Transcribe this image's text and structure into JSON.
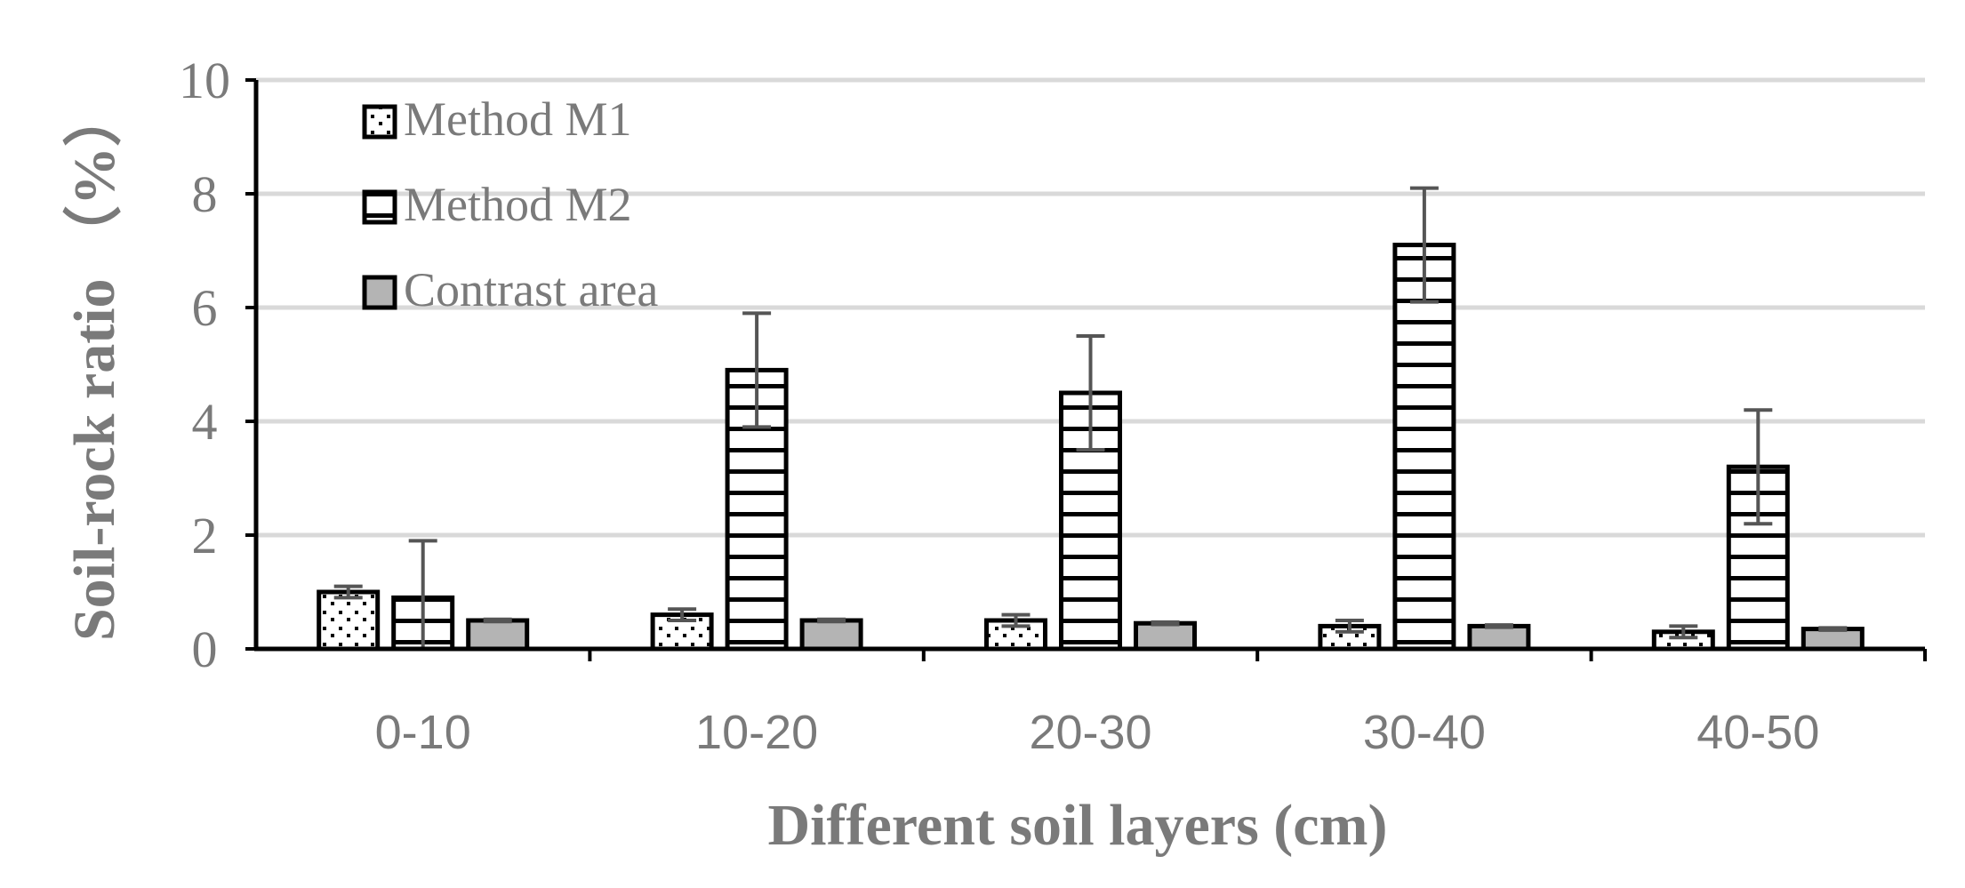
{
  "chart_data": {
    "type": "bar",
    "categories": [
      "0-10",
      "10-20",
      "20-30",
      "30-40",
      "40-50"
    ],
    "series": [
      {
        "name": "Method M1",
        "values": [
          1.0,
          0.6,
          0.5,
          0.4,
          0.3
        ],
        "errors": [
          0.1,
          0.1,
          0.1,
          0.1,
          0.1
        ],
        "pattern": "dots"
      },
      {
        "name": "Method M2",
        "values": [
          0.9,
          4.9,
          4.5,
          7.1,
          3.2
        ],
        "errors": [
          1.0,
          1.0,
          1.0,
          1.0,
          1.0
        ],
        "pattern": "horizontal-stripes"
      },
      {
        "name": "Contrast area",
        "values": [
          0.5,
          0.5,
          0.45,
          0.4,
          0.35
        ],
        "errors": [
          0.02,
          0.02,
          0.02,
          0.02,
          0.02
        ],
        "pattern": "solid-gray"
      }
    ],
    "xlabel": "Different soil layers (cm)",
    "ylabel": "Soil-rock ratio （%）",
    "ylim": [
      0,
      10
    ],
    "yticks": [
      0,
      2,
      4,
      6,
      8,
      10
    ],
    "grid": true,
    "legend_position": "top-left"
  },
  "colors": {
    "text": "#7a7a7a",
    "axis": "#000000",
    "grid": "#d9d9d9",
    "solid_fill": "#b4b4b4",
    "error_bar": "#555555"
  }
}
